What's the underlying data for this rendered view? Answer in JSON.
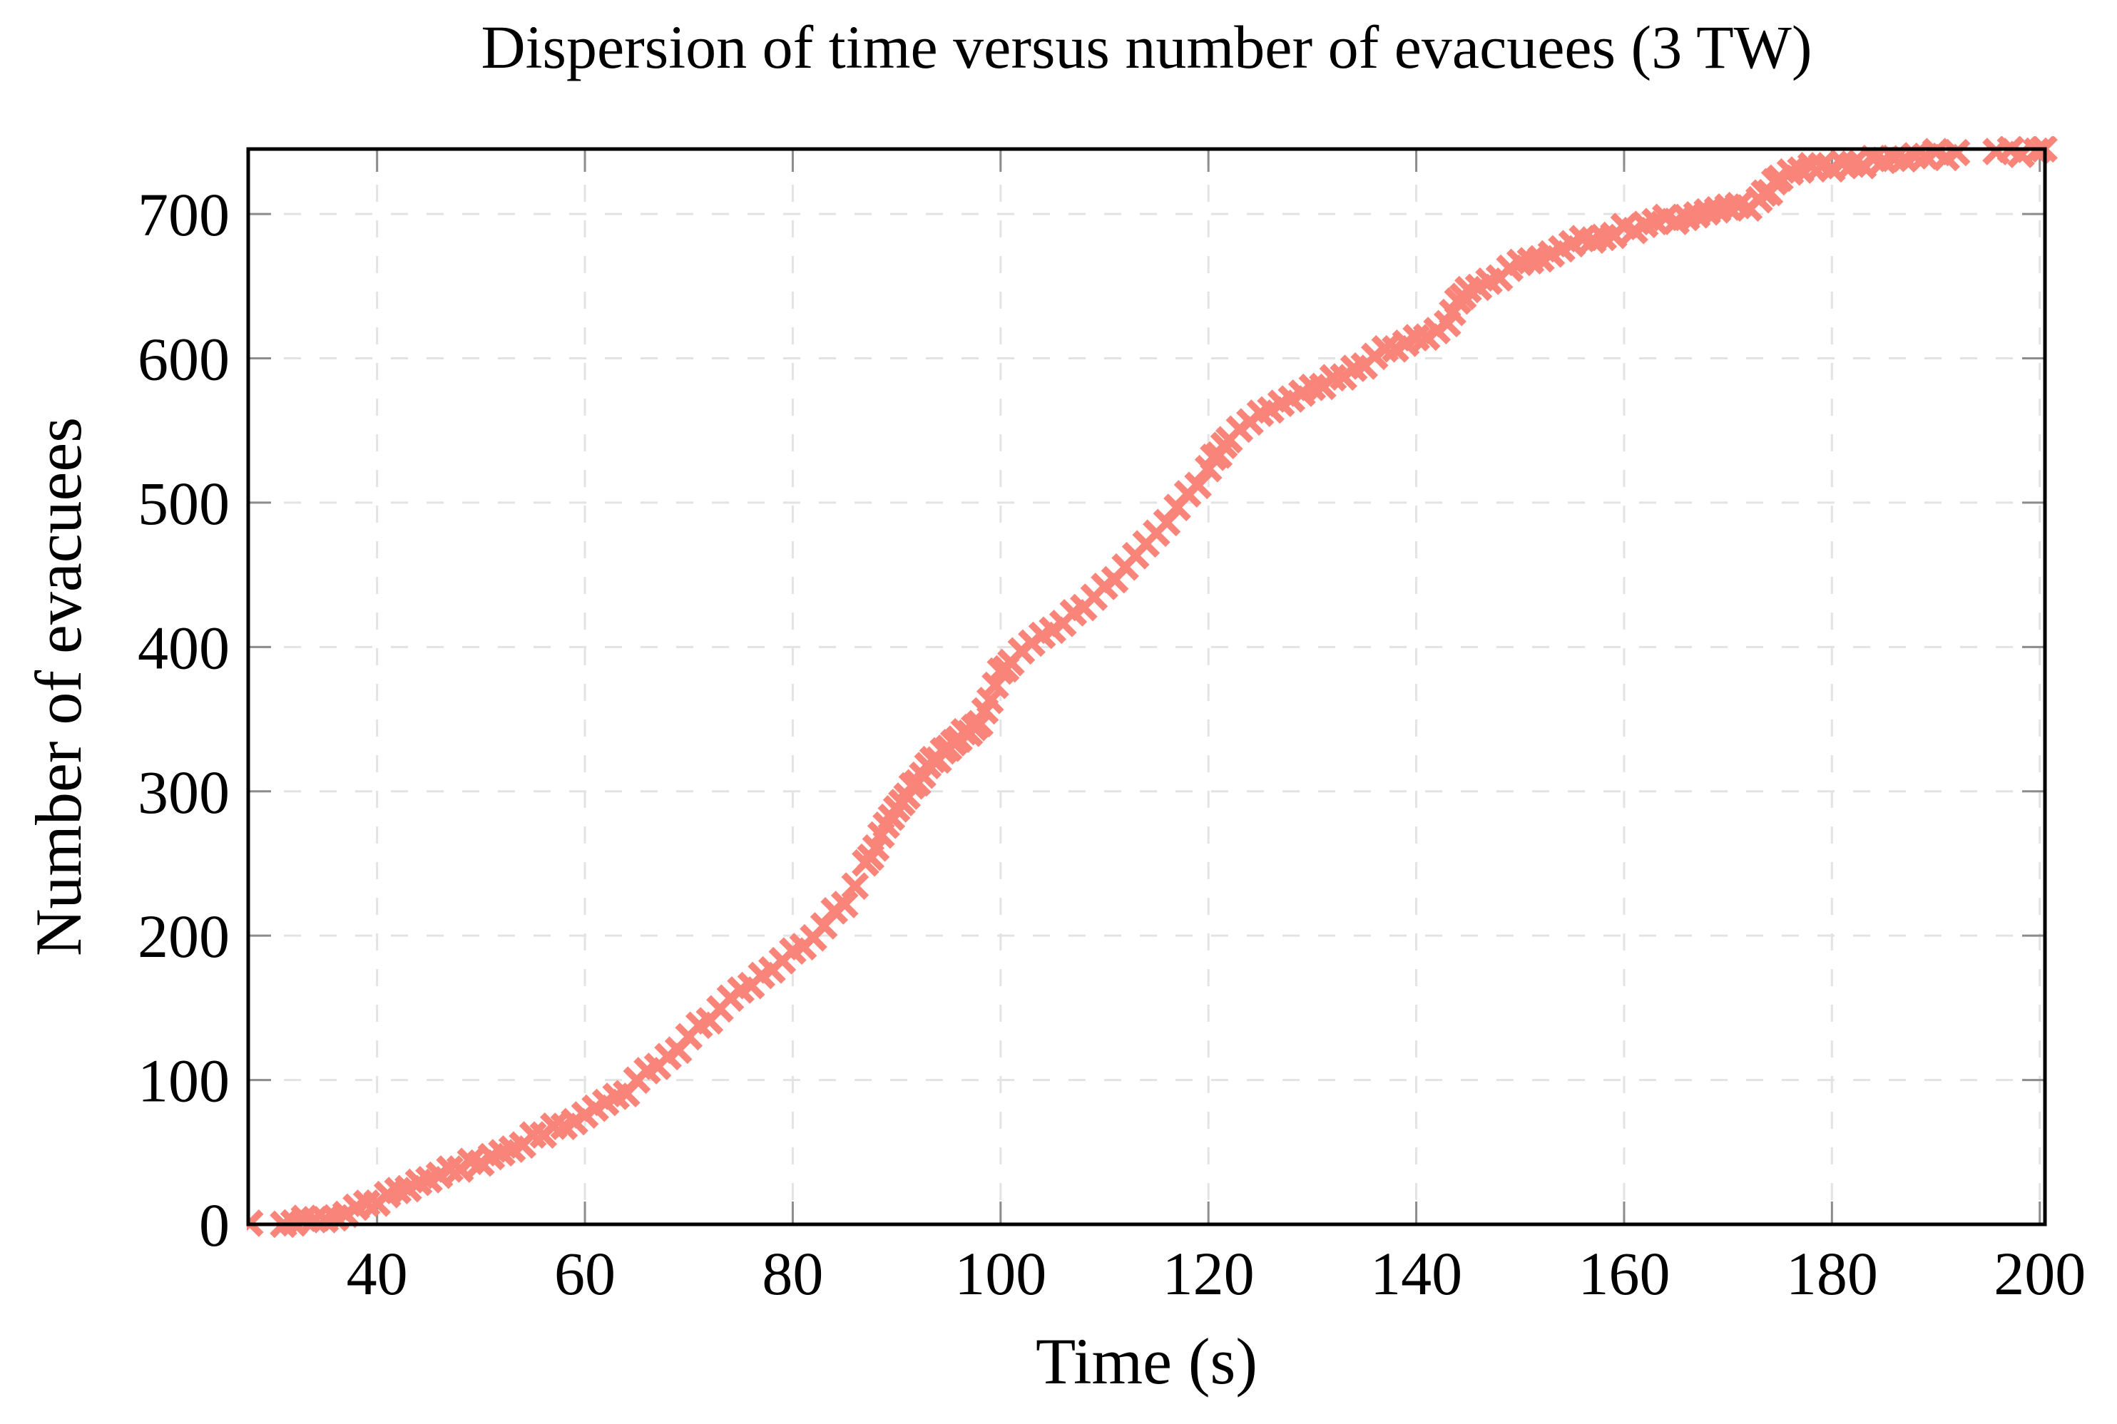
{
  "chart_data": {
    "type": "scatter",
    "title": "Dispersion of time versus number of evacuees (3 TW)",
    "xlabel": "Time (s)",
    "ylabel": "Number of evacuees",
    "xlim": [
      27.6,
      200.5
    ],
    "ylim": [
      0,
      745
    ],
    "xticks": [
      40,
      60,
      80,
      100,
      120,
      140,
      160,
      180,
      200
    ],
    "yticks": [
      0,
      100,
      200,
      300,
      400,
      500,
      600,
      700
    ],
    "grid": "major-both-dashed",
    "legend": "none",
    "marker": {
      "shape": "x-cross",
      "color": "#f9857a",
      "half_size": 16,
      "stroke_width": 9.5,
      "jitter_units": 2.5
    },
    "axis_color": "#000000",
    "grid_color": "#e3e3e3",
    "tick_color": "#8c8c8c",
    "series_name": "evacuees-cumulative",
    "points": [
      [
        27.75,
        0
      ],
      [
        31,
        1
      ],
      [
        32,
        2
      ],
      [
        33,
        3
      ],
      [
        34,
        4
      ],
      [
        35,
        5
      ],
      [
        36,
        7
      ],
      [
        37,
        9
      ],
      [
        38,
        11
      ],
      [
        39,
        14
      ],
      [
        40,
        17
      ],
      [
        41,
        19
      ],
      [
        42,
        22
      ],
      [
        43,
        25
      ],
      [
        44,
        28
      ],
      [
        45,
        31
      ],
      [
        46,
        34
      ],
      [
        47,
        37
      ],
      [
        48,
        39
      ],
      [
        49,
        42
      ],
      [
        50,
        44
      ],
      [
        51,
        47
      ],
      [
        52,
        50
      ],
      [
        53,
        53
      ],
      [
        54,
        57
      ],
      [
        55,
        60
      ],
      [
        56,
        63
      ],
      [
        57,
        66
      ],
      [
        58,
        68
      ],
      [
        59,
        71
      ],
      [
        60,
        74
      ],
      [
        61,
        79
      ],
      [
        62,
        84
      ],
      [
        63,
        88
      ],
      [
        64,
        92
      ],
      [
        65,
        98
      ],
      [
        66,
        104
      ],
      [
        67,
        110
      ],
      [
        68,
        116
      ],
      [
        69,
        123
      ],
      [
        70,
        131
      ],
      [
        71,
        137
      ],
      [
        72,
        143
      ],
      [
        73,
        149
      ],
      [
        74,
        155
      ],
      [
        75,
        161
      ],
      [
        76,
        166
      ],
      [
        77,
        171
      ],
      [
        78,
        176
      ],
      [
        79,
        181
      ],
      [
        80,
        187
      ],
      [
        81,
        193
      ],
      [
        82,
        200
      ],
      [
        83,
        207
      ],
      [
        84,
        215
      ],
      [
        85,
        224
      ],
      [
        86,
        235
      ],
      [
        87,
        248
      ],
      [
        87.5,
        255
      ],
      [
        88,
        262
      ],
      [
        88.5,
        269
      ],
      [
        89,
        276
      ],
      [
        89.5,
        282
      ],
      [
        90,
        288
      ],
      [
        90.5,
        293
      ],
      [
        91,
        298
      ],
      [
        91.5,
        303
      ],
      [
        92,
        307
      ],
      [
        92.5,
        312
      ],
      [
        93,
        316
      ],
      [
        93.5,
        320
      ],
      [
        94,
        324
      ],
      [
        94.5,
        328
      ],
      [
        95,
        331
      ],
      [
        95.5,
        334
      ],
      [
        96,
        337
      ],
      [
        96.5,
        340
      ],
      [
        97,
        342
      ],
      [
        97.5,
        345
      ],
      [
        98,
        348
      ],
      [
        98.5,
        354
      ],
      [
        99,
        362
      ],
      [
        99.5,
        372
      ],
      [
        100,
        382
      ],
      [
        100.5,
        387
      ],
      [
        101,
        391
      ],
      [
        102,
        397
      ],
      [
        103,
        402
      ],
      [
        104,
        407
      ],
      [
        105,
        412
      ],
      [
        106,
        417
      ],
      [
        107,
        422
      ],
      [
        108,
        428
      ],
      [
        109,
        434
      ],
      [
        110,
        441
      ],
      [
        111,
        448
      ],
      [
        112,
        456
      ],
      [
        113,
        463
      ],
      [
        114,
        471
      ],
      [
        115,
        479
      ],
      [
        116,
        487
      ],
      [
        117,
        496
      ],
      [
        118,
        505
      ],
      [
        119,
        514
      ],
      [
        120,
        524
      ],
      [
        120.5,
        530
      ],
      [
        121,
        535
      ],
      [
        121.5,
        540
      ],
      [
        122,
        545
      ],
      [
        123,
        551
      ],
      [
        124,
        557
      ],
      [
        125,
        562
      ],
      [
        126,
        566
      ],
      [
        127,
        569
      ],
      [
        128,
        573
      ],
      [
        129,
        576
      ],
      [
        130,
        579
      ],
      [
        131,
        582
      ],
      [
        132,
        585
      ],
      [
        133,
        588
      ],
      [
        134,
        591
      ],
      [
        135,
        595
      ],
      [
        136,
        600
      ],
      [
        137,
        605
      ],
      [
        138,
        609
      ],
      [
        139,
        611
      ],
      [
        140,
        614
      ],
      [
        141,
        617
      ],
      [
        142,
        620
      ],
      [
        143,
        626
      ],
      [
        143.5,
        632
      ],
      [
        144,
        638
      ],
      [
        144.5,
        643
      ],
      [
        145,
        646
      ],
      [
        146,
        650
      ],
      [
        147,
        653
      ],
      [
        148,
        656
      ],
      [
        149,
        660
      ],
      [
        150,
        664
      ],
      [
        151,
        668
      ],
      [
        152,
        671
      ],
      [
        153,
        674
      ],
      [
        154,
        677
      ],
      [
        155,
        680
      ],
      [
        156,
        682
      ],
      [
        157,
        684
      ],
      [
        158,
        686
      ],
      [
        159,
        687
      ],
      [
        160,
        689
      ],
      [
        161,
        691
      ],
      [
        162,
        693
      ],
      [
        163,
        694
      ],
      [
        164,
        696
      ],
      [
        165,
        697
      ],
      [
        166,
        698
      ],
      [
        167,
        699
      ],
      [
        168,
        700
      ],
      [
        169,
        701
      ],
      [
        170,
        703
      ],
      [
        171,
        704
      ],
      [
        172,
        706
      ],
      [
        173,
        709
      ],
      [
        173.5,
        713
      ],
      [
        174,
        717
      ],
      [
        174.5,
        721
      ],
      [
        175,
        724
      ],
      [
        176,
        728
      ],
      [
        177,
        730
      ],
      [
        178,
        732
      ],
      [
        179,
        733
      ],
      [
        180,
        733
      ],
      [
        181,
        734
      ],
      [
        182,
        735
      ],
      [
        183,
        735
      ],
      [
        184,
        736
      ],
      [
        185,
        737
      ],
      [
        186,
        738
      ],
      [
        187,
        738
      ],
      [
        188,
        739
      ],
      [
        189,
        740
      ],
      [
        190,
        741
      ],
      [
        191,
        741
      ],
      [
        192,
        742
      ],
      [
        195.8,
        742
      ],
      [
        197.2,
        743
      ],
      [
        198.2,
        743
      ],
      [
        199.7,
        744
      ],
      [
        200.4,
        745
      ]
    ]
  }
}
